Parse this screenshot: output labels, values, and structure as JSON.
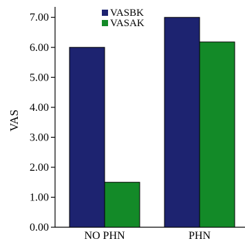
{
  "chart_data": {
    "type": "bar",
    "categories": [
      "NO PHN",
      "PHN"
    ],
    "series": [
      {
        "name": "VASBK",
        "values": [
          6.0,
          7.0
        ],
        "color": "#1d2370"
      },
      {
        "name": "VASAK",
        "values": [
          1.5,
          6.18
        ],
        "color": "#138a28"
      }
    ],
    "ylabel": "VAS",
    "xlabel": "",
    "ylim": [
      0,
      7.35
    ],
    "yticks": [
      "0.00",
      "1.00",
      "2.00",
      "3.00",
      "4.00",
      "5.00",
      "6.00",
      "7.00"
    ],
    "legend_position": "top-center",
    "grid": false
  }
}
